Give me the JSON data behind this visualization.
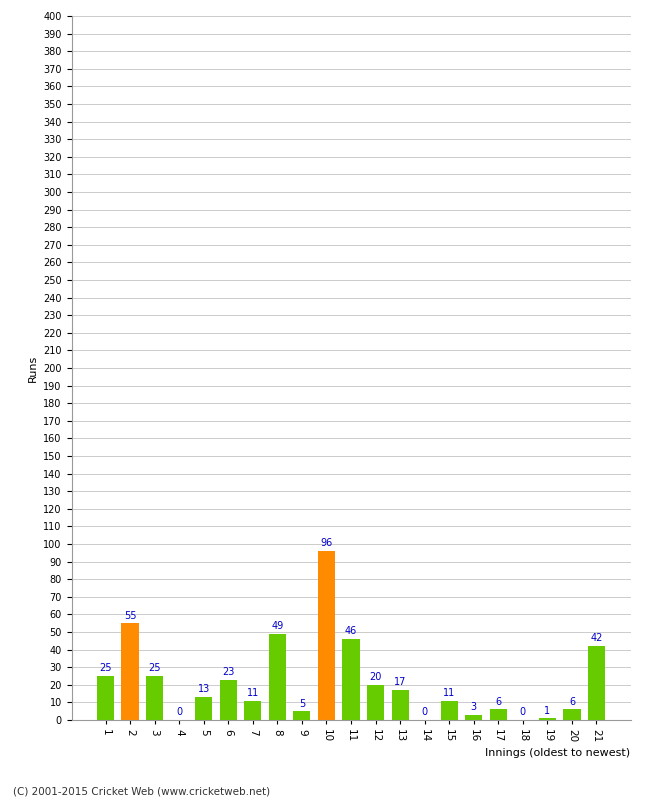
{
  "xlabel": "Innings (oldest to newest)",
  "ylabel": "Runs",
  "categories": [
    1,
    2,
    3,
    4,
    5,
    6,
    7,
    8,
    9,
    10,
    11,
    12,
    13,
    14,
    15,
    16,
    17,
    18,
    19,
    20,
    21
  ],
  "values": [
    25,
    55,
    25,
    0,
    13,
    23,
    11,
    49,
    5,
    96,
    46,
    20,
    17,
    0,
    11,
    3,
    6,
    0,
    1,
    6,
    42
  ],
  "colors": [
    "#66cc00",
    "#ff8c00",
    "#66cc00",
    "#66cc00",
    "#66cc00",
    "#66cc00",
    "#66cc00",
    "#66cc00",
    "#66cc00",
    "#ff8c00",
    "#66cc00",
    "#66cc00",
    "#66cc00",
    "#66cc00",
    "#66cc00",
    "#66cc00",
    "#66cc00",
    "#66cc00",
    "#66cc00",
    "#66cc00",
    "#66cc00"
  ],
  "ylim": [
    0,
    400
  ],
  "yticks": [
    0,
    10,
    20,
    30,
    40,
    50,
    60,
    70,
    80,
    90,
    100,
    110,
    120,
    130,
    140,
    150,
    160,
    170,
    180,
    190,
    200,
    210,
    220,
    230,
    240,
    250,
    260,
    270,
    280,
    290,
    300,
    310,
    320,
    330,
    340,
    350,
    360,
    370,
    380,
    390,
    400
  ],
  "label_color": "#0000cc",
  "background_color": "#ffffff",
  "grid_color": "#cccccc",
  "footer": "(C) 2001-2015 Cricket Web (www.cricketweb.net)",
  "xlabel_ha": "right",
  "xtick_rotation": 270
}
